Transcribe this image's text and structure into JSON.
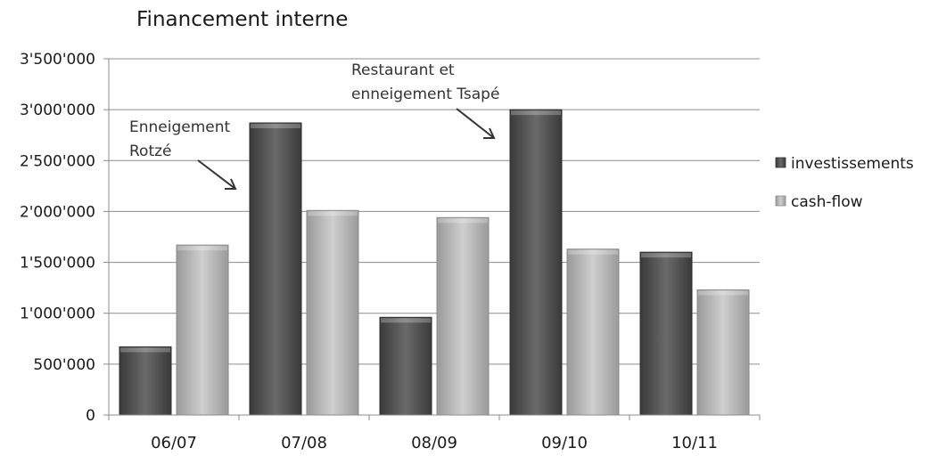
{
  "chart_data": {
    "type": "bar",
    "title": "Financement interne",
    "categories": [
      "06/07",
      "07/08",
      "08/09",
      "09/10",
      "10/11"
    ],
    "series": [
      {
        "name": "investissements",
        "values": [
          670000,
          2870000,
          960000,
          3000000,
          1600000
        ],
        "color": "#555555"
      },
      {
        "name": "cash-flow",
        "values": [
          1670000,
          2010000,
          1940000,
          1630000,
          1230000
        ],
        "color": "#b3b3b3"
      }
    ],
    "ylim": [
      0,
      3500000
    ],
    "ytick_step": 500000,
    "ytick_labels": [
      "0",
      "500'000",
      "1'000'000",
      "1'500'000",
      "2'000'000",
      "2'500'000",
      "3'000'000",
      "3'500'000"
    ],
    "grid": true,
    "legend_position": "right",
    "annotations": [
      {
        "lines": [
          "Enneigement",
          "Rotzé"
        ],
        "points_to": {
          "category": "07/08",
          "series": "investissements"
        }
      },
      {
        "lines": [
          "Restaurant et",
          "enneigement Tsapé"
        ],
        "points_to": {
          "category": "09/10",
          "series": "investissements"
        }
      }
    ]
  }
}
